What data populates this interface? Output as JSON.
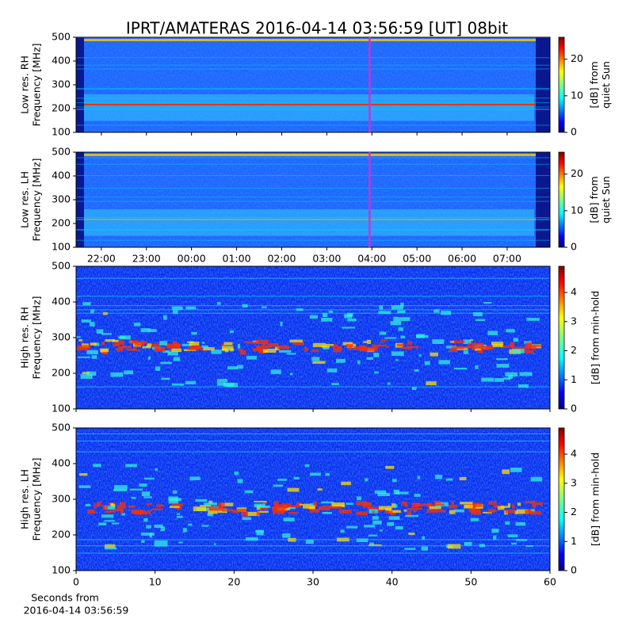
{
  "title": "IPRT/AMATERAS 2016-04-14 03:56:59 [UT]   08bit",
  "chart_data": [
    {
      "type": "spectrogram",
      "ylabel": [
        "Low res. RH",
        "Frequency [MHz]"
      ],
      "ylim": [
        100,
        500
      ],
      "yticks": [
        100,
        200,
        300,
        400,
        500
      ],
      "xlim": [
        21.44,
        31.95
      ],
      "vline": 27.95,
      "vline_color": "#cc33cc",
      "colormap": "jet",
      "clim": [
        0,
        26
      ],
      "cticks": [
        0,
        10,
        20
      ],
      "clabel": [
        "[dB] from",
        "quiet Sun"
      ]
    },
    {
      "type": "spectrogram",
      "ylabel": [
        "Low res. LH",
        "Frequency [MHz]"
      ],
      "ylim": [
        100,
        500
      ],
      "yticks": [
        100,
        200,
        300,
        400,
        500
      ],
      "xlim": [
        21.44,
        31.95
      ],
      "vline": 27.95,
      "vline_color": "#cc33cc",
      "colormap": "jet",
      "xticks": [
        {
          "value": 22,
          "label": "22:00"
        },
        {
          "value": 23,
          "label": "23:00"
        },
        {
          "value": 24,
          "label": "00:00"
        },
        {
          "value": 25,
          "label": "01:00"
        },
        {
          "value": 26,
          "label": "02:00"
        },
        {
          "value": 27,
          "label": "03:00"
        },
        {
          "value": 28,
          "label": "04:00"
        },
        {
          "value": 29,
          "label": "05:00"
        },
        {
          "value": 30,
          "label": "06:00"
        },
        {
          "value": 31,
          "label": "07:00"
        }
      ],
      "clim": [
        0,
        26
      ],
      "cticks": [
        0,
        10,
        20
      ],
      "clabel": [
        "[dB] from",
        "quiet Sun"
      ]
    },
    {
      "type": "spectrogram",
      "ylabel": [
        "High res. RH",
        "Frequency [MHz]"
      ],
      "ylim": [
        100,
        500
      ],
      "yticks": [
        100,
        200,
        300,
        400,
        500
      ],
      "xlim": [
        0,
        60
      ],
      "colormap": "jet",
      "clim": [
        0,
        4.9
      ],
      "cticks": [
        0,
        1,
        2,
        3,
        4
      ],
      "clabel": [
        "[dB] from min-hold"
      ]
    },
    {
      "type": "spectrogram",
      "ylabel": [
        "High res. LH",
        "Frequency [MHz]"
      ],
      "ylim": [
        100,
        500
      ],
      "yticks": [
        100,
        200,
        300,
        400,
        500
      ],
      "xlim": [
        0,
        60
      ],
      "xticks": [
        0,
        10,
        20,
        30,
        40,
        50,
        60
      ],
      "xlabel": [
        "Seconds from",
        "2016-04-14 03:56:59"
      ],
      "colormap": "jet",
      "clim": [
        0,
        4.9
      ],
      "cticks": [
        0,
        1,
        2,
        3,
        4
      ],
      "clabel": [
        "[dB] from min-hold"
      ]
    }
  ]
}
